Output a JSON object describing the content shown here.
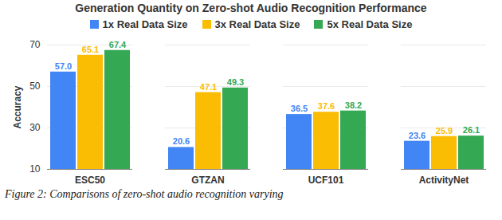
{
  "chart_data": {
    "type": "bar",
    "title": "Generation Quantity on Zero-shot Audio Recognition Performance",
    "y_label": "Accuracy",
    "caption": "Figure 2: Comparisons of zero-shot audio recognition varying",
    "categories": [
      "ESC50",
      "GTZAN",
      "UCF101",
      "ActivityNet"
    ],
    "series": [
      {
        "name": "1x Real Data Size",
        "color": "#4285f4",
        "values": [
          57.0,
          20.6,
          36.5,
          23.6
        ],
        "value_labels": [
          "57.0",
          "20.6",
          "36.5",
          "23.6"
        ]
      },
      {
        "name": "3x Real Data Size",
        "color": "#fbbc04",
        "values": [
          65.1,
          47.1,
          37.6,
          25.9
        ],
        "value_labels": [
          "65.1",
          "47.1",
          "37.6",
          "25.9"
        ]
      },
      {
        "name": "5x Real Data Size",
        "color": "#34a853",
        "values": [
          67.4,
          49.3,
          38.2,
          26.1
        ],
        "value_labels": [
          "67.4",
          "49.3",
          "38.2",
          "26.1"
        ]
      }
    ],
    "ylim": [
      10,
      70
    ],
    "yticks": [
      10,
      30,
      50,
      70
    ],
    "grid": true,
    "legend": "top",
    "data_labels": true
  }
}
